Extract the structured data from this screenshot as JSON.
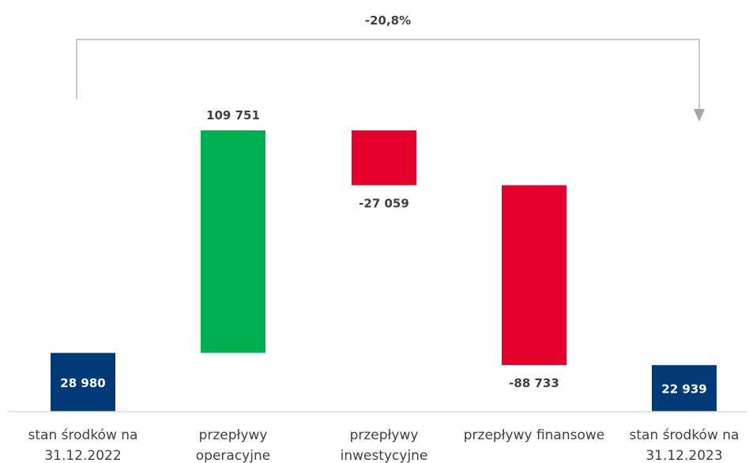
{
  "chart_data": {
    "type": "bar",
    "subtype": "waterfall",
    "categories": [
      [
        "stan środków na",
        "31.12.2022"
      ],
      [
        "przepływy",
        "operacyjne"
      ],
      [
        "przepływy",
        "inwestycyjne"
      ],
      [
        "przepływy finansowe"
      ],
      [
        "stan środków na",
        "31.12.2023"
      ]
    ],
    "values": [
      28980,
      109751,
      -27059,
      -88733,
      22939
    ],
    "kinds": [
      "total",
      "delta",
      "delta",
      "delta",
      "total"
    ],
    "data_labels": [
      "28 980",
      "109 751",
      "-27 059",
      "-88 733",
      "22 939"
    ],
    "change_annotation": "-20,8%",
    "ylim": [
      0,
      141000
    ],
    "grid": false,
    "legend": "none",
    "colors": {
      "total": "#003a78",
      "increase": "#00b050",
      "decrease": "#e4002b",
      "total_label": "#ffffff",
      "delta_label": "#404040",
      "axis": "#d9d9d9",
      "bracket": "#a6a6a6"
    }
  }
}
